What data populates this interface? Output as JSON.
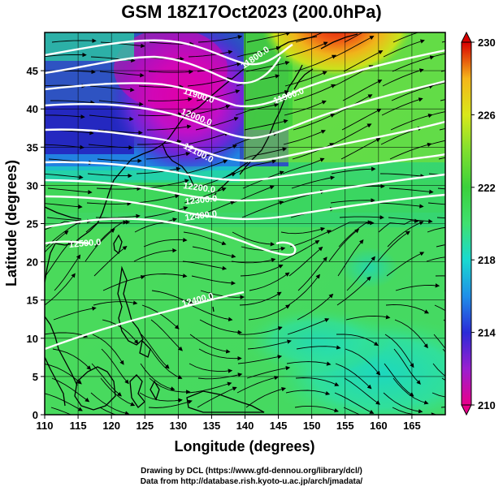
{
  "title": "GSM 18Z17Oct2023 (200.0hPa)",
  "xaxis": {
    "label": "Longitude (degrees)",
    "range": [
      110,
      170
    ],
    "ticks": [
      "110",
      "115",
      "120",
      "125",
      "130",
      "135",
      "140",
      "145",
      "150",
      "155",
      "160",
      "165"
    ]
  },
  "yaxis": {
    "label": "Latitude  (degrees)",
    "range": [
      0,
      50
    ],
    "ticks": [
      "0",
      "5",
      "10",
      "15",
      "20",
      "25",
      "30",
      "35",
      "40",
      "45"
    ]
  },
  "colorbar": {
    "range": [
      210,
      230
    ],
    "labels": [
      "230",
      "226",
      "222",
      "218",
      "214",
      "210"
    ],
    "colors": [
      "#e8008a",
      "#9a1fd0",
      "#2b2bd8",
      "#1f8fe8",
      "#19d9d0",
      "#3fe070",
      "#3bd13b",
      "#7fdf2f",
      "#d9e81a",
      "#f5b51a",
      "#ee4a1a",
      "#d80000"
    ]
  },
  "contours": [
    {
      "label": "11900.0"
    },
    {
      "label": "12000.0"
    },
    {
      "label": "12100.0"
    },
    {
      "label": "12200.0"
    },
    {
      "label": "12300.0"
    },
    {
      "label": "12400.0"
    },
    {
      "label": "12500.0"
    },
    {
      "label": "12400.0"
    },
    {
      "label": "11800.0"
    },
    {
      "label": "11900.0"
    }
  ],
  "credit": {
    "line1": "Drawing by DCL (https://www.gfd-dennou.org/library/dcl/)",
    "line2": "Data from http://database.rish.kyoto-u.ac.jp/arch/jmadata/"
  }
}
